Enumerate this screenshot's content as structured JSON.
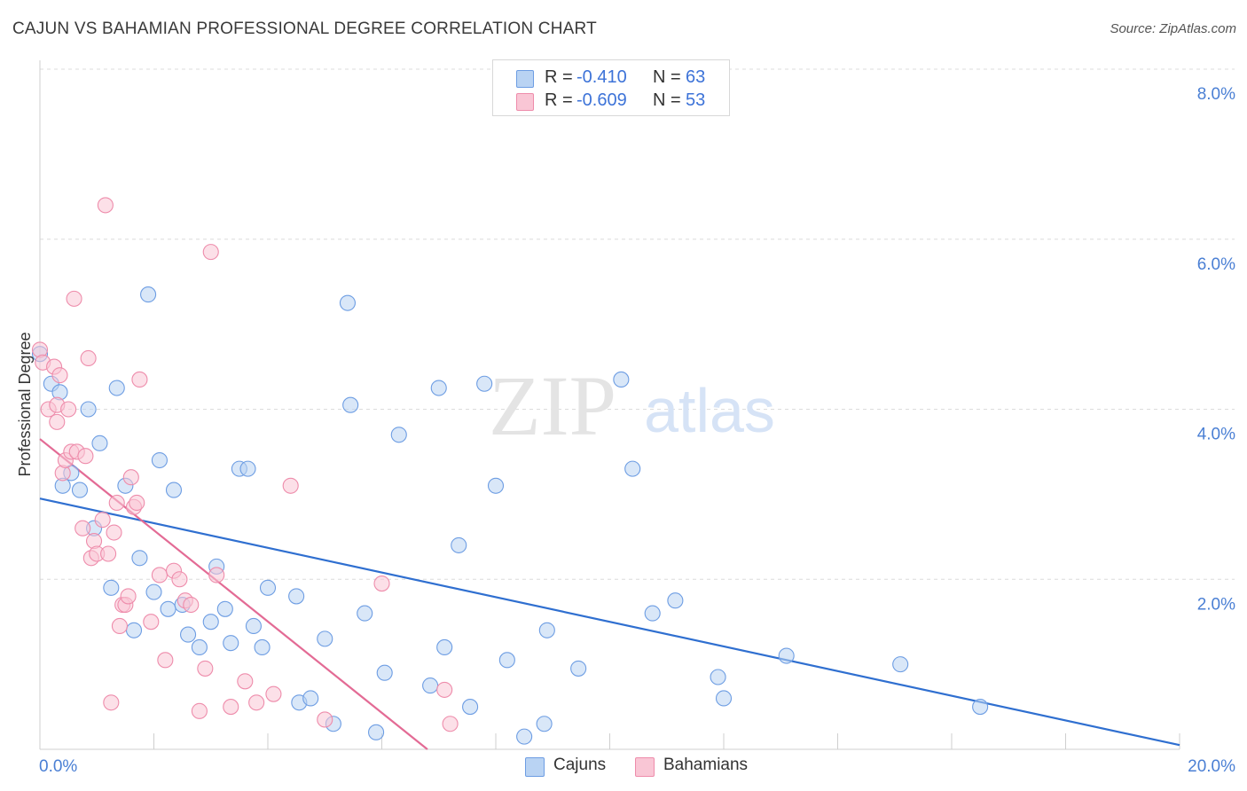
{
  "title": "CAJUN VS BAHAMIAN PROFESSIONAL DEGREE CORRELATION CHART",
  "source": "Source: ZipAtlas.com",
  "watermark": {
    "zip": "ZIP",
    "atlas": "atlas"
  },
  "legend": {
    "r_label": "R =",
    "n_label": "N =",
    "rows": [
      {
        "r": "-0.410",
        "n": "63",
        "color": "#a9c8f0"
      },
      {
        "r": "-0.609",
        "n": "53",
        "color": "#f7b8cb"
      }
    ]
  },
  "chart_data": {
    "type": "scatter",
    "title": "CAJUN VS BAHAMIAN PROFESSIONAL DEGREE CORRELATION CHART",
    "xlabel": "",
    "ylabel": "Professional Degree",
    "xlim": [
      0,
      20
    ],
    "ylim": [
      0,
      8.0
    ],
    "y_ticks": [
      "2.0%",
      "4.0%",
      "6.0%",
      "8.0%"
    ],
    "x_ticks": [
      "0.0%",
      "20.0%"
    ],
    "grid": "horizontal dashed",
    "legend_position": "top-center",
    "series": [
      {
        "name": "Cajuns",
        "color": "#6d9de3",
        "fill": "#b9d3f3",
        "trend": {
          "x0": 0,
          "y0": 2.95,
          "x1": 20,
          "y1": 0.05,
          "color": "#2f6fd0"
        },
        "points": [
          [
            0.0,
            4.65
          ],
          [
            0.2,
            4.3
          ],
          [
            0.35,
            4.2
          ],
          [
            0.4,
            3.1
          ],
          [
            0.55,
            3.25
          ],
          [
            0.7,
            3.05
          ],
          [
            0.85,
            4.0
          ],
          [
            0.95,
            2.6
          ],
          [
            1.05,
            3.6
          ],
          [
            1.25,
            1.9
          ],
          [
            1.35,
            4.25
          ],
          [
            1.5,
            3.1
          ],
          [
            1.65,
            1.4
          ],
          [
            1.75,
            2.25
          ],
          [
            1.9,
            5.35
          ],
          [
            2.0,
            1.85
          ],
          [
            2.1,
            3.4
          ],
          [
            2.25,
            1.65
          ],
          [
            2.35,
            3.05
          ],
          [
            2.5,
            1.7
          ],
          [
            2.6,
            1.35
          ],
          [
            2.8,
            1.2
          ],
          [
            3.0,
            1.5
          ],
          [
            3.1,
            2.15
          ],
          [
            3.25,
            1.65
          ],
          [
            3.35,
            1.25
          ],
          [
            3.5,
            3.3
          ],
          [
            3.65,
            3.3
          ],
          [
            3.75,
            1.45
          ],
          [
            3.9,
            1.2
          ],
          [
            4.0,
            1.9
          ],
          [
            4.5,
            1.8
          ],
          [
            4.55,
            0.55
          ],
          [
            4.75,
            0.6
          ],
          [
            5.0,
            1.3
          ],
          [
            5.15,
            0.3
          ],
          [
            5.4,
            5.25
          ],
          [
            5.45,
            4.05
          ],
          [
            5.7,
            1.6
          ],
          [
            5.9,
            0.2
          ],
          [
            6.05,
            0.9
          ],
          [
            6.3,
            3.7
          ],
          [
            6.85,
            0.75
          ],
          [
            7.0,
            4.25
          ],
          [
            7.1,
            1.2
          ],
          [
            7.35,
            2.4
          ],
          [
            7.55,
            0.5
          ],
          [
            7.8,
            4.3
          ],
          [
            8.0,
            3.1
          ],
          [
            8.2,
            1.05
          ],
          [
            8.5,
            0.15
          ],
          [
            8.85,
            0.3
          ],
          [
            8.9,
            1.4
          ],
          [
            9.45,
            0.95
          ],
          [
            10.2,
            4.35
          ],
          [
            10.4,
            3.3
          ],
          [
            10.75,
            1.6
          ],
          [
            11.15,
            1.75
          ],
          [
            11.9,
            0.85
          ],
          [
            12.0,
            0.6
          ],
          [
            13.1,
            1.1
          ],
          [
            15.1,
            1.0
          ],
          [
            16.5,
            0.5
          ]
        ]
      },
      {
        "name": "Bahamians",
        "color": "#ee8cab",
        "fill": "#f9c6d5",
        "trend": {
          "x0": 0,
          "y0": 3.65,
          "x1": 6.8,
          "y1": 0.0,
          "color": "#e36b95"
        },
        "points": [
          [
            0.0,
            4.7
          ],
          [
            0.05,
            4.55
          ],
          [
            0.15,
            4.0
          ],
          [
            0.25,
            4.5
          ],
          [
            0.3,
            4.05
          ],
          [
            0.35,
            4.4
          ],
          [
            0.4,
            3.25
          ],
          [
            0.45,
            3.4
          ],
          [
            0.5,
            4.0
          ],
          [
            0.55,
            3.5
          ],
          [
            0.6,
            5.3
          ],
          [
            0.65,
            3.5
          ],
          [
            0.75,
            2.6
          ],
          [
            0.8,
            3.45
          ],
          [
            0.85,
            4.6
          ],
          [
            0.9,
            2.25
          ],
          [
            0.95,
            2.45
          ],
          [
            1.0,
            2.3
          ],
          [
            1.1,
            2.7
          ],
          [
            1.15,
            6.4
          ],
          [
            1.2,
            2.3
          ],
          [
            1.25,
            0.55
          ],
          [
            1.3,
            2.55
          ],
          [
            1.35,
            2.9
          ],
          [
            1.4,
            1.45
          ],
          [
            1.45,
            1.7
          ],
          [
            1.5,
            1.7
          ],
          [
            1.55,
            1.8
          ],
          [
            1.6,
            3.2
          ],
          [
            1.65,
            2.85
          ],
          [
            1.7,
            2.9
          ],
          [
            1.75,
            4.35
          ],
          [
            1.95,
            1.5
          ],
          [
            2.1,
            2.05
          ],
          [
            2.2,
            1.05
          ],
          [
            2.35,
            2.1
          ],
          [
            2.45,
            2.0
          ],
          [
            2.55,
            1.75
          ],
          [
            2.65,
            1.7
          ],
          [
            2.8,
            0.45
          ],
          [
            2.9,
            0.95
          ],
          [
            3.0,
            5.85
          ],
          [
            3.1,
            2.05
          ],
          [
            3.35,
            0.5
          ],
          [
            3.6,
            0.8
          ],
          [
            3.8,
            0.55
          ],
          [
            4.1,
            0.65
          ],
          [
            4.4,
            3.1
          ],
          [
            5.0,
            0.35
          ],
          [
            6.0,
            1.95
          ],
          [
            7.1,
            0.7
          ],
          [
            7.2,
            0.3
          ],
          [
            0.3,
            3.85
          ]
        ]
      }
    ]
  }
}
